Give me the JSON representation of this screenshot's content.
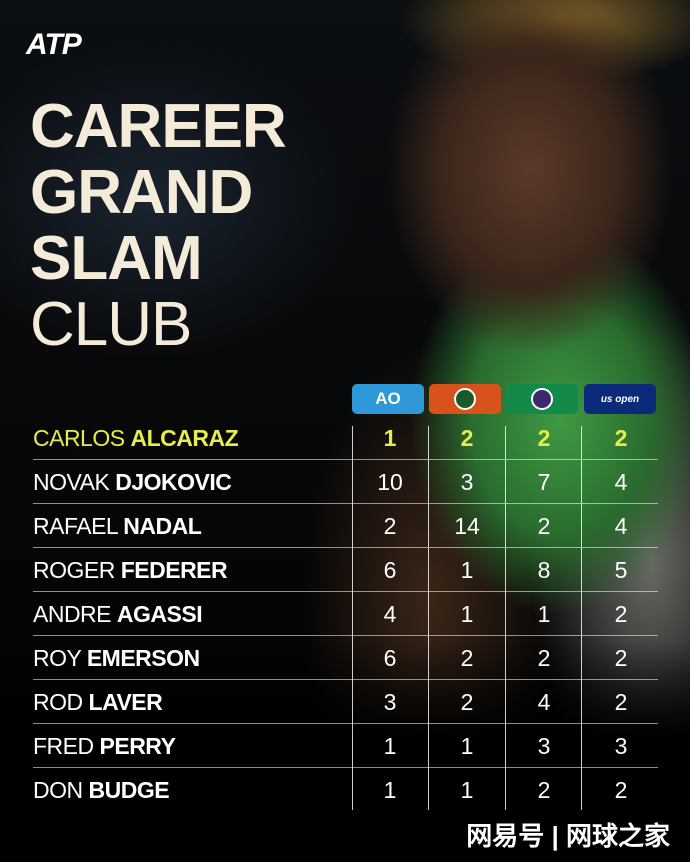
{
  "logo": "ATP",
  "title": {
    "line1": "CAREER",
    "line2": "GRAND",
    "line3": "SLAM",
    "line4": "CLUB"
  },
  "slams": [
    {
      "label": "AO",
      "color": "#2f98d8",
      "icon": "australian-open-logo"
    },
    {
      "label": "RG",
      "color": "#d8521c",
      "icon": "roland-garros-logo"
    },
    {
      "label": "W",
      "color": "#138a4a",
      "icon": "wimbledon-logo"
    },
    {
      "label": "us open",
      "color": "#0c2a7a",
      "icon": "us-open-logo"
    }
  ],
  "players": [
    {
      "first": "CARLOS",
      "last": "ALCARAZ",
      "ao": "1",
      "rg": "2",
      "w": "2",
      "uso": "2",
      "highlight": "#e6ec4c"
    },
    {
      "first": "NOVAK",
      "last": "DJOKOVIC",
      "ao": "10",
      "rg": "3",
      "w": "7",
      "uso": "4"
    },
    {
      "first": "RAFAEL",
      "last": "NADAL",
      "ao": "2",
      "rg": "14",
      "w": "2",
      "uso": "4"
    },
    {
      "first": "ROGER",
      "last": "FEDERER",
      "ao": "6",
      "rg": "1",
      "w": "8",
      "uso": "5"
    },
    {
      "first": "ANDRE",
      "last": "AGASSI",
      "ao": "4",
      "rg": "1",
      "w": "1",
      "uso": "2"
    },
    {
      "first": "ROY",
      "last": "EMERSON",
      "ao": "6",
      "rg": "2",
      "w": "2",
      "uso": "2"
    },
    {
      "first": "ROD",
      "last": "LAVER",
      "ao": "3",
      "rg": "2",
      "w": "4",
      "uso": "2"
    },
    {
      "first": "FRED",
      "last": "PERRY",
      "ao": "1",
      "rg": "1",
      "w": "3",
      "uso": "3"
    },
    {
      "first": "DON",
      "last": "BUDGE",
      "ao": "1",
      "rg": "1",
      "w": "2",
      "uso": "2"
    }
  ],
  "watermark": "网易号 | 网球之家"
}
